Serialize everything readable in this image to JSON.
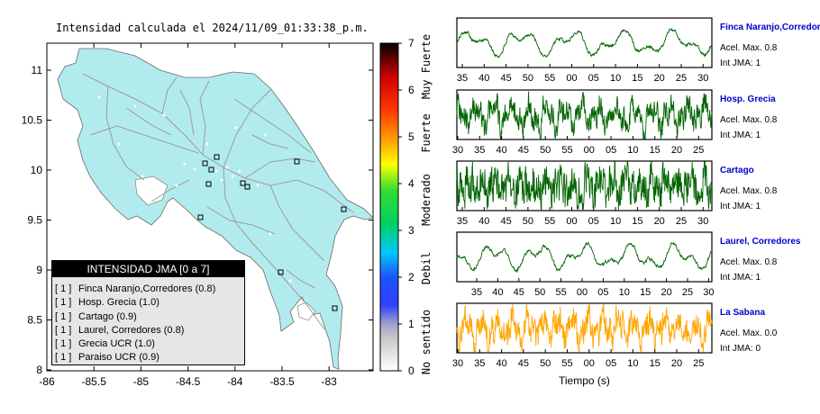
{
  "map": {
    "title": "Intensidad calculada el 2024/11/09_01:33:38_p.m.",
    "y_ticks": [
      "11",
      "10.5",
      "10",
      "9.5",
      "9",
      "8.5",
      "8"
    ],
    "x_ticks": [
      "-86",
      "-85.5",
      "-85",
      "-84.5",
      "-84",
      "-83.5",
      "-83"
    ],
    "land_color": "#b2ebed"
  },
  "colorbar": {
    "ticks": [
      "0",
      "1",
      "2",
      "3",
      "4",
      "5",
      "6",
      "7"
    ],
    "labels": [
      "No sentido",
      "Debil",
      "Moderado",
      "Fuerte",
      "Muy Fuerte"
    ]
  },
  "legend": {
    "title": "INTENSIDAD JMA [0 a 7]",
    "items": [
      {
        "level": "[ 1 ]",
        "name": "Finca Naranjo,Corredores (0.8)"
      },
      {
        "level": "[ 1 ]",
        "name": "Hosp. Grecia (1.0)"
      },
      {
        "level": "[ 1 ]",
        "name": "Cartago (0.9)"
      },
      {
        "level": "[ 1 ]",
        "name": "Laurel, Corredores (0.8)"
      },
      {
        "level": "[ 1 ]",
        "name": "Grecia UCR (1.0)"
      },
      {
        "level": "[ 1 ]",
        "name": "Paraiso UCR (0.9)"
      }
    ]
  },
  "traces": {
    "xlabel": "Tiempo (s)",
    "panels": [
      {
        "name": "Finca Naranjo,Corredores",
        "acel": "Acel. Max. 0.8",
        "jma": "Int JMA: 1",
        "color": "#006400",
        "ticks": [
          "35",
          "40",
          "45",
          "50",
          "55",
          "00",
          "05",
          "10",
          "15",
          "20",
          "25",
          "30"
        ]
      },
      {
        "name": "Hosp. Grecia",
        "acel": "Acel. Max. 0.8",
        "jma": "Int JMA: 1",
        "color": "#006400",
        "ticks": [
          "30",
          "35",
          "40",
          "45",
          "50",
          "55",
          "00",
          "05",
          "10",
          "15",
          "20",
          "25"
        ]
      },
      {
        "name": "Cartago",
        "acel": "Acel. Max. 0.8",
        "jma": "Int JMA: 1",
        "color": "#006400",
        "ticks": [
          "35",
          "40",
          "45",
          "50",
          "55",
          "00",
          "05",
          "10",
          "15",
          "20",
          "25",
          "30"
        ]
      },
      {
        "name": "Laurel, Corredores",
        "acel": "Acel. Max. 0.8",
        "jma": "Int JMA: 1",
        "color": "#006400",
        "ticks": [
          "35",
          "40",
          "45",
          "50",
          "55",
          "00",
          "05",
          "10",
          "15",
          "20",
          "25",
          "30"
        ]
      },
      {
        "name": "La Sabana",
        "acel": "Acel. Max. 0.0",
        "jma": "Int JMA: 0",
        "color": "#ffa500",
        "ticks": [
          "30",
          "35",
          "40",
          "45",
          "50",
          "55",
          "00",
          "05",
          "10",
          "15",
          "20",
          "25"
        ]
      }
    ]
  }
}
